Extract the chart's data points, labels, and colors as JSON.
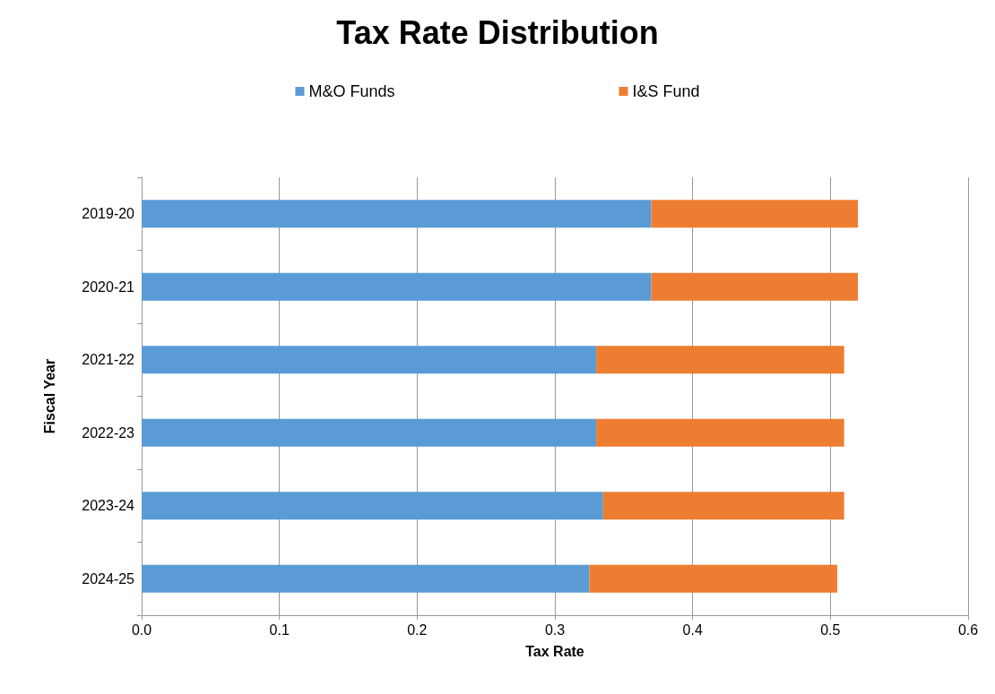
{
  "chart_data": {
    "type": "bar",
    "title": "Tax Rate Distribution",
    "xlabel": "Tax Rate",
    "ylabel": "Fiscal Year",
    "orientation": "horizontal",
    "stacked": true,
    "categories": [
      "2019-20",
      "2020-21",
      "2021-22",
      "2022-23",
      "2023-24",
      "2024-25"
    ],
    "series": [
      {
        "name": "M&O Funds",
        "color": "#5b9bd5",
        "values": [
          0.37,
          0.37,
          0.33,
          0.33,
          0.335,
          0.325
        ]
      },
      {
        "name": "I&S Fund",
        "color": "#ed7d31",
        "values": [
          0.15,
          0.15,
          0.18,
          0.18,
          0.175,
          0.18
        ]
      }
    ],
    "xlim": [
      0,
      0.6
    ],
    "xticks": [
      {
        "value": 0,
        "label": "0.0"
      },
      0.1,
      0.2,
      0.3,
      0.4,
      0.5,
      0.6
    ],
    "grid": "x",
    "legend": "top"
  }
}
